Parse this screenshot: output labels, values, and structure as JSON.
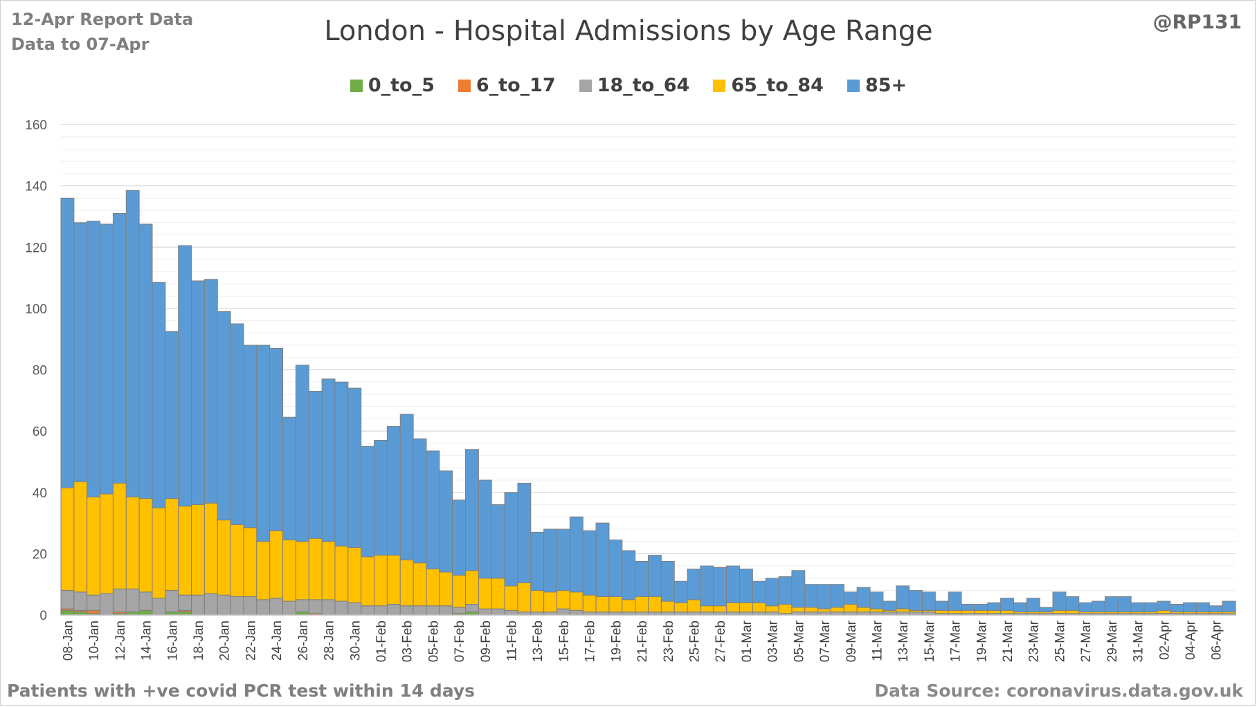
{
  "header": {
    "report_line1": "12-Apr Report Data",
    "report_line2": "Data to 07-Apr",
    "handle": "@RP131"
  },
  "footer": {
    "note": "Patients with  +ve covid PCR test within 14 days",
    "source": "Data Source: coronavirus.data.gov.uk"
  },
  "colors": {
    "0_to_5": "#70ad47",
    "6_to_17": "#ed7d31",
    "18_to_64": "#a5a5a5",
    "65_to_84": "#ffc000",
    "85+": "#5b9bd5",
    "bar_outline": "#7f7f7f",
    "grid": "#d9d9d9"
  },
  "chart_data": {
    "type": "bar",
    "stacked": true,
    "title": "London - Hospital Admissions by Age Range",
    "xlabel": "",
    "ylabel": "",
    "ylim": [
      0,
      160
    ],
    "yticks": [
      0,
      20,
      40,
      60,
      80,
      100,
      120,
      140,
      160
    ],
    "grid": true,
    "legend_position": "top",
    "categories": [
      "08-Jan",
      "09-Jan",
      "10-Jan",
      "11-Jan",
      "12-Jan",
      "13-Jan",
      "14-Jan",
      "15-Jan",
      "16-Jan",
      "17-Jan",
      "18-Jan",
      "19-Jan",
      "20-Jan",
      "21-Jan",
      "22-Jan",
      "23-Jan",
      "24-Jan",
      "25-Jan",
      "26-Jan",
      "27-Jan",
      "28-Jan",
      "29-Jan",
      "30-Jan",
      "31-Jan",
      "01-Feb",
      "02-Feb",
      "03-Feb",
      "04-Feb",
      "05-Feb",
      "06-Feb",
      "07-Feb",
      "08-Feb",
      "09-Feb",
      "10-Feb",
      "11-Feb",
      "12-Feb",
      "13-Feb",
      "14-Feb",
      "15-Feb",
      "16-Feb",
      "17-Feb",
      "18-Feb",
      "19-Feb",
      "20-Feb",
      "21-Feb",
      "22-Feb",
      "23-Feb",
      "24-Feb",
      "25-Feb",
      "26-Feb",
      "27-Feb",
      "28-Feb",
      "01-Mar",
      "02-Mar",
      "03-Mar",
      "04-Mar",
      "05-Mar",
      "06-Mar",
      "07-Mar",
      "08-Mar",
      "09-Mar",
      "10-Mar",
      "11-Mar",
      "12-Mar",
      "13-Mar",
      "14-Mar",
      "15-Mar",
      "16-Mar",
      "17-Mar",
      "18-Mar",
      "19-Mar",
      "20-Mar",
      "21-Mar",
      "22-Mar",
      "23-Mar",
      "24-Mar",
      "25-Mar",
      "26-Mar",
      "27-Mar",
      "28-Mar",
      "29-Mar",
      "30-Mar",
      "31-Mar",
      "01-Apr",
      "02-Apr",
      "03-Apr",
      "04-Apr",
      "05-Apr",
      "06-Apr",
      "07-Apr"
    ],
    "x_tick_labels": [
      "08-Jan",
      "",
      "10-Jan",
      "",
      "12-Jan",
      "",
      "14-Jan",
      "",
      "16-Jan",
      "",
      "18-Jan",
      "",
      "20-Jan",
      "",
      "22-Jan",
      "",
      "24-Jan",
      "",
      "26-Jan",
      "",
      "28-Jan",
      "",
      "30-Jan",
      "",
      "01-Feb",
      "",
      "03-Feb",
      "",
      "05-Feb",
      "",
      "07-Feb",
      "",
      "09-Feb",
      "",
      "11-Feb",
      "",
      "13-Feb",
      "",
      "15-Feb",
      "",
      "17-Feb",
      "",
      "19-Feb",
      "",
      "21-Feb",
      "",
      "23-Feb",
      "",
      "25-Feb",
      "",
      "27-Feb",
      "",
      "01-Mar",
      "",
      "03-Mar",
      "",
      "05-Mar",
      "",
      "07-Mar",
      "",
      "09-Mar",
      "",
      "11-Mar",
      "",
      "13-Mar",
      "",
      "15-Mar",
      "",
      "17-Mar",
      "",
      "19-Mar",
      "",
      "21-Mar",
      "",
      "23-Mar",
      "",
      "25-Mar",
      "",
      "27-Mar",
      "",
      "29-Mar",
      "",
      "31-Mar",
      "",
      "02-Apr",
      "",
      "04-Apr",
      "",
      "06-Apr",
      ""
    ],
    "series": [
      {
        "name": "0_to_5",
        "values": [
          1.5,
          1,
          0.5,
          0,
          0.5,
          1,
          1.5,
          0,
          1,
          1,
          0,
          0,
          0,
          0,
          0,
          0,
          0,
          0,
          1,
          0,
          0,
          0,
          0,
          0,
          0,
          0,
          0,
          0,
          0,
          0,
          0.5,
          1,
          0,
          0,
          0,
          0,
          0,
          0,
          0,
          0,
          0,
          0,
          0,
          0,
          0,
          0,
          0,
          0,
          0,
          0,
          0,
          0,
          0,
          0,
          0,
          0,
          0,
          0,
          0,
          0,
          0,
          0,
          0,
          0,
          0,
          0,
          0,
          0,
          0,
          0,
          0,
          0,
          0,
          0,
          0,
          0,
          0,
          0,
          0,
          0,
          0,
          0,
          0,
          0,
          0,
          0,
          0,
          0,
          0,
          0
        ]
      },
      {
        "name": "6_to_17",
        "values": [
          0.5,
          0.5,
          1,
          0,
          0.5,
          0,
          0,
          0,
          0,
          0.5,
          0,
          0,
          0,
          0,
          0,
          0,
          0,
          0,
          0,
          0.5,
          0,
          0,
          0,
          0,
          0,
          0,
          0,
          0,
          0,
          0,
          0,
          0,
          0,
          0,
          0,
          0,
          0,
          0,
          0,
          0,
          0,
          0,
          0,
          0,
          0,
          0,
          0,
          0,
          0,
          0,
          0,
          0,
          0,
          0,
          0,
          0,
          0,
          0,
          0,
          0,
          0,
          0,
          0,
          0,
          0,
          0,
          0,
          0,
          0,
          0,
          0,
          0,
          0,
          0,
          0,
          0,
          0,
          0,
          0,
          0,
          0,
          0,
          0,
          0,
          0,
          0,
          0,
          0,
          0,
          0
        ]
      },
      {
        "name": "18_to_64",
        "values": [
          6,
          6,
          5,
          7,
          7.5,
          7.5,
          6,
          5.5,
          7,
          5,
          6.5,
          7,
          6.5,
          6,
          6,
          5,
          5.5,
          4.5,
          4,
          4.5,
          5,
          4.5,
          4,
          3,
          3,
          3.5,
          3,
          3,
          3,
          3,
          2,
          2.5,
          2,
          2,
          1.5,
          1,
          1,
          1,
          2,
          1.5,
          1,
          1,
          1,
          1,
          1,
          1,
          1,
          1,
          1,
          1,
          1,
          1,
          1,
          1,
          1,
          0.5,
          1,
          1,
          1,
          1,
          1,
          1,
          1,
          1,
          1,
          1,
          1,
          0.5,
          0.5,
          0.5,
          0.5,
          0.5,
          0.5,
          0.5,
          0.5,
          0.5,
          0.5,
          0.5,
          0.5,
          0.5,
          0.5,
          0.5,
          0.5,
          0.5,
          0.5,
          0.5,
          0.5,
          0.5,
          0.5,
          0.5
        ]
      },
      {
        "name": "65_to_84",
        "values": [
          33.5,
          36,
          32,
          32.5,
          34.5,
          30,
          30.5,
          29.5,
          30,
          29,
          29.5,
          29.5,
          24.5,
          23.5,
          22.5,
          19,
          22,
          20,
          19,
          20,
          19,
          18,
          18,
          16,
          16.5,
          16,
          15,
          14,
          12,
          11,
          10.5,
          11,
          10,
          10,
          8,
          9.5,
          7,
          6.5,
          6,
          6,
          5.5,
          5,
          5,
          4,
          5,
          5,
          3.5,
          3,
          4,
          2,
          2,
          3,
          3,
          3,
          2,
          3,
          1.5,
          1.5,
          1,
          1.5,
          2.5,
          1.5,
          1,
          0.5,
          1,
          0.5,
          0.5,
          1,
          1,
          1,
          1,
          1,
          1,
          0.5,
          0.5,
          0.5,
          1,
          1,
          0.5,
          0.5,
          0.5,
          0.5,
          0.5,
          0.5,
          1,
          0.5,
          0.5,
          0.5,
          0.5,
          0.5
        ]
      },
      {
        "name": "85+",
        "values": [
          94.5,
          84.5,
          90,
          88,
          88,
          100,
          89.5,
          73.5,
          54.5,
          85,
          73,
          73,
          68,
          65.5,
          59.5,
          64,
          59.5,
          40,
          57.5,
          48,
          53,
          53.5,
          52,
          36,
          37.5,
          42,
          47.5,
          40.5,
          38.5,
          33,
          24.5,
          39.5,
          32,
          24,
          30.5,
          32.5,
          19,
          20.5,
          20,
          24.5,
          21,
          24,
          18.5,
          16,
          11.5,
          13.5,
          13,
          7,
          10,
          13,
          12.5,
          12,
          11,
          7,
          9,
          9,
          12,
          7.5,
          8,
          7.5,
          4,
          6.5,
          5.5,
          3,
          7.5,
          6.5,
          6,
          3,
          6,
          2,
          2,
          2.5,
          4,
          3,
          4.5,
          1.5,
          6,
          4.5,
          3,
          3.5,
          5,
          5,
          3,
          3,
          3,
          2.5,
          3,
          3,
          2,
          3.5
        ]
      }
    ]
  }
}
